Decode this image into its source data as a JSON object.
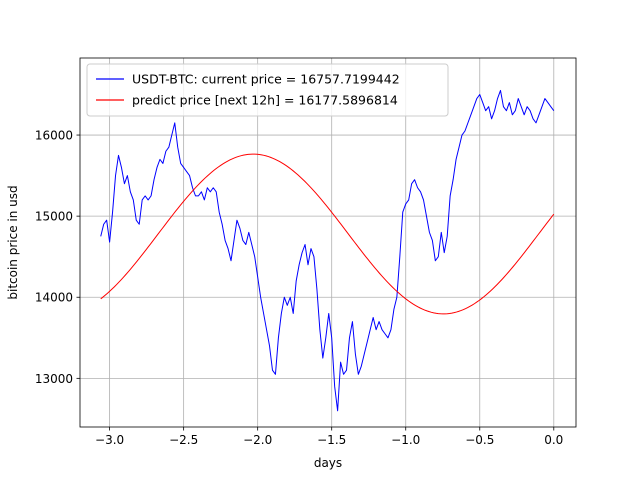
{
  "chart_data": {
    "type": "line",
    "title": "",
    "xlabel": "days",
    "ylabel": "bitcoin price in usd",
    "xlim": [
      -3.2,
      0.15
    ],
    "ylim": [
      12400,
      16950
    ],
    "grid": true,
    "legend_position": "top-left",
    "x_ticks": [
      -3.0,
      -2.5,
      -2.0,
      -1.5,
      -1.0,
      -0.5,
      0.0
    ],
    "x_tick_labels": [
      "−3.0",
      "−2.5",
      "−2.0",
      "−1.5",
      "−1.0",
      "−0.5",
      "0.0"
    ],
    "y_ticks": [
      13000,
      14000,
      15000,
      16000
    ],
    "y_tick_labels": [
      "13000",
      "14000",
      "15000",
      "16000"
    ],
    "series": [
      {
        "name": "USDT-BTC: current price = 16757.7199442",
        "color": "#0000ff",
        "x": [
          -3.06,
          -3.04,
          -3.02,
          -3.0,
          -2.98,
          -2.96,
          -2.94,
          -2.92,
          -2.9,
          -2.88,
          -2.86,
          -2.84,
          -2.82,
          -2.8,
          -2.78,
          -2.76,
          -2.74,
          -2.72,
          -2.7,
          -2.68,
          -2.66,
          -2.64,
          -2.62,
          -2.6,
          -2.58,
          -2.56,
          -2.54,
          -2.52,
          -2.5,
          -2.48,
          -2.46,
          -2.44,
          -2.42,
          -2.4,
          -2.38,
          -2.36,
          -2.34,
          -2.32,
          -2.3,
          -2.28,
          -2.26,
          -2.24,
          -2.22,
          -2.2,
          -2.18,
          -2.16,
          -2.14,
          -2.12,
          -2.1,
          -2.08,
          -2.06,
          -2.04,
          -2.02,
          -2.0,
          -1.98,
          -1.96,
          -1.94,
          -1.92,
          -1.9,
          -1.88,
          -1.86,
          -1.84,
          -1.82,
          -1.8,
          -1.78,
          -1.76,
          -1.74,
          -1.72,
          -1.7,
          -1.68,
          -1.66,
          -1.64,
          -1.62,
          -1.6,
          -1.58,
          -1.56,
          -1.54,
          -1.52,
          -1.5,
          -1.48,
          -1.46,
          -1.44,
          -1.42,
          -1.4,
          -1.38,
          -1.36,
          -1.34,
          -1.32,
          -1.3,
          -1.28,
          -1.26,
          -1.24,
          -1.22,
          -1.2,
          -1.18,
          -1.16,
          -1.14,
          -1.12,
          -1.1,
          -1.08,
          -1.06,
          -1.04,
          -1.02,
          -1.0,
          -0.98,
          -0.96,
          -0.94,
          -0.92,
          -0.9,
          -0.88,
          -0.86,
          -0.84,
          -0.82,
          -0.8,
          -0.78,
          -0.76,
          -0.74,
          -0.72,
          -0.7,
          -0.68,
          -0.66,
          -0.64,
          -0.62,
          -0.6,
          -0.58,
          -0.56,
          -0.54,
          -0.52,
          -0.5,
          -0.48,
          -0.46,
          -0.44,
          -0.42,
          -0.4,
          -0.38,
          -0.36,
          -0.34,
          -0.32,
          -0.3,
          -0.28,
          -0.26,
          -0.24,
          -0.22,
          -0.2,
          -0.18,
          -0.16,
          -0.14,
          -0.12,
          -0.1,
          -0.08,
          -0.06,
          -0.04,
          -0.02,
          0.0
        ],
        "values": [
          14750,
          14900,
          14950,
          14680,
          15050,
          15500,
          15750,
          15600,
          15400,
          15500,
          15300,
          15200,
          14950,
          14900,
          15200,
          15250,
          15200,
          15250,
          15450,
          15600,
          15700,
          15650,
          15800,
          15850,
          16000,
          16150,
          15850,
          15650,
          15600,
          15550,
          15500,
          15350,
          15250,
          15250,
          15300,
          15200,
          15350,
          15300,
          15350,
          15300,
          15050,
          14900,
          14700,
          14600,
          14450,
          14700,
          14950,
          14850,
          14700,
          14650,
          14800,
          14650,
          14500,
          14250,
          14000,
          13800,
          13600,
          13400,
          13100,
          13050,
          13500,
          13800,
          14000,
          13900,
          14000,
          13800,
          14200,
          14400,
          14550,
          14650,
          14400,
          14600,
          14500,
          14100,
          13600,
          13250,
          13500,
          13800,
          13500,
          12900,
          12600,
          13200,
          13050,
          13100,
          13500,
          13700,
          13300,
          13050,
          13150,
          13300,
          13450,
          13600,
          13750,
          13600,
          13700,
          13600,
          13550,
          13500,
          13600,
          13850,
          14000,
          14500,
          15050,
          15150,
          15200,
          15400,
          15450,
          15350,
          15300,
          15200,
          15000,
          14800,
          14700,
          14450,
          14500,
          14800,
          14550,
          14750,
          15250,
          15450,
          15700,
          15850,
          16000,
          16050,
          16150,
          16250,
          16350,
          16450,
          16500,
          16400,
          16300,
          16350,
          16200,
          16300,
          16450,
          16550,
          16350,
          16300,
          16400,
          16250,
          16300,
          16450,
          16350,
          16250,
          16350,
          16300,
          16200,
          16150,
          16250,
          16350,
          16450,
          16400,
          16350,
          16300
        ]
      },
      {
        "name": "predict price [next 12h] = 16177.5896814",
        "color": "#ff0000",
        "fn": {
          "offset": 14780,
          "amplitude": 985,
          "phase_day": -2.03,
          "period_days": 2.57
        },
        "x_range": [
          -3.06,
          0.0
        ]
      }
    ]
  }
}
